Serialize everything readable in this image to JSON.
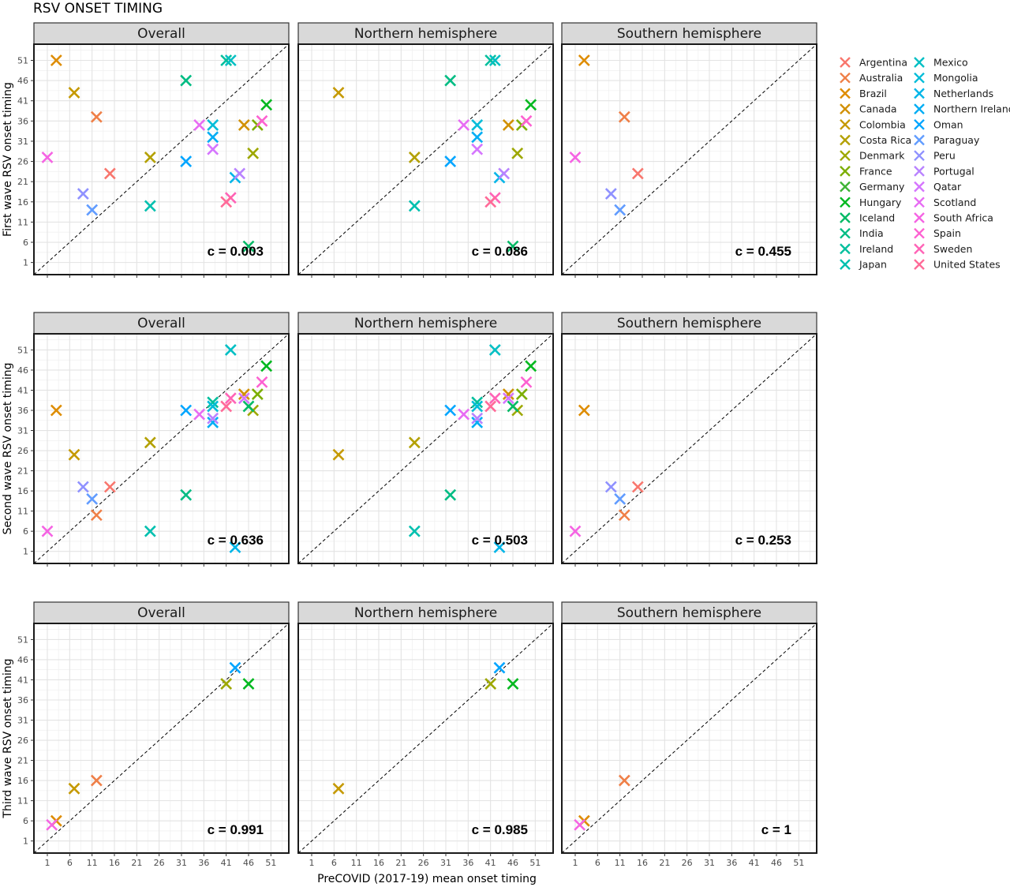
{
  "title": "RSV ONSET TIMING",
  "xlabel": "PreCOVID (2017-19) mean onset timing",
  "ylabels": [
    "First wave RSV onset timing",
    "Second wave RSV onset timing",
    "Third wave RSV onset timing"
  ],
  "panel_titles": [
    "Overall",
    "Northern hemisphere",
    "Southern hemisphere"
  ],
  "ticks": [
    "1",
    "6",
    "11",
    "16",
    "21",
    "26",
    "31",
    "36",
    "41",
    "46",
    "51"
  ],
  "countries": [
    {
      "name": "Argentina",
      "color": "#F8766D"
    },
    {
      "name": "Australia",
      "color": "#EF7F47"
    },
    {
      "name": "Brazil",
      "color": "#DE8C00"
    },
    {
      "name": "Canada",
      "color": "#D19000"
    },
    {
      "name": "Colombia",
      "color": "#C59900"
    },
    {
      "name": "Costa Rica",
      "color": "#B3A000"
    },
    {
      "name": "Denmark",
      "color": "#9DA700"
    },
    {
      "name": "France",
      "color": "#7CAE00"
    },
    {
      "name": "Germany",
      "color": "#3EB335"
    },
    {
      "name": "Hungary",
      "color": "#00B81F"
    },
    {
      "name": "Iceland",
      "color": "#00BA65"
    },
    {
      "name": "India",
      "color": "#00BC83"
    },
    {
      "name": "Ireland",
      "color": "#00BF9D"
    },
    {
      "name": "Japan",
      "color": "#00C0AF"
    },
    {
      "name": "Mexico",
      "color": "#00BFC4"
    },
    {
      "name": "Mongolia",
      "color": "#00BCD8"
    },
    {
      "name": "Netherlands",
      "color": "#00B5E8"
    },
    {
      "name": "Northern Ireland",
      "color": "#00ADF4"
    },
    {
      "name": "Oman",
      "color": "#00A5FF"
    },
    {
      "name": "Paraguay",
      "color": "#619CFF"
    },
    {
      "name": "Peru",
      "color": "#8F91FF"
    },
    {
      "name": "Portugal",
      "color": "#B983FF"
    },
    {
      "name": "Qatar",
      "color": "#D575FE"
    },
    {
      "name": "Scotland",
      "color": "#E76BF3"
    },
    {
      "name": "South Africa",
      "color": "#F564E3"
    },
    {
      "name": "Spain",
      "color": "#FD61D1"
    },
    {
      "name": "Sweden",
      "color": "#FF63B6"
    },
    {
      "name": "United States",
      "color": "#FF6A98"
    }
  ],
  "chart_data": {
    "type": "scatter",
    "xlim": [
      -2,
      55
    ],
    "ylim": [
      -2,
      55
    ],
    "reference_line": "y = x",
    "legend_position": "right",
    "rows": [
      {
        "ylabel": "First wave RSV onset timing",
        "panels": [
          {
            "title": "Overall",
            "c": "c = 0.003",
            "points": [
              {
                "country": "Argentina",
                "x": 15,
                "y": 23
              },
              {
                "country": "Australia",
                "x": 12,
                "y": 37
              },
              {
                "country": "Brazil",
                "x": 3,
                "y": 51
              },
              {
                "country": "Canada",
                "x": 45,
                "y": 35
              },
              {
                "country": "Colombia",
                "x": 7,
                "y": 43
              },
              {
                "country": "Costa Rica",
                "x": 24,
                "y": 27
              },
              {
                "country": "Denmark",
                "x": 47,
                "y": 28
              },
              {
                "country": "France",
                "x": 48,
                "y": 35
              },
              {
                "country": "Hungary",
                "x": 50,
                "y": 40
              },
              {
                "country": "Iceland",
                "x": 46,
                "y": 5
              },
              {
                "country": "India",
                "x": 32,
                "y": 46
              },
              {
                "country": "Ireland",
                "x": 41,
                "y": 51
              },
              {
                "country": "Japan",
                "x": 24,
                "y": 15
              },
              {
                "country": "Mexico",
                "x": 42,
                "y": 51
              },
              {
                "country": "Mongolia",
                "x": 38,
                "y": 35
              },
              {
                "country": "Netherlands",
                "x": 43,
                "y": 22
              },
              {
                "country": "Northern Ireland",
                "x": 38,
                "y": 32
              },
              {
                "country": "Oman",
                "x": 32,
                "y": 26
              },
              {
                "country": "Paraguay",
                "x": 11,
                "y": 14
              },
              {
                "country": "Peru",
                "x": 9,
                "y": 18
              },
              {
                "country": "Portugal",
                "x": 44,
                "y": 23
              },
              {
                "country": "Qatar",
                "x": 38,
                "y": 29
              },
              {
                "country": "Scotland",
                "x": 35,
                "y": 35
              },
              {
                "country": "South Africa",
                "x": 1,
                "y": 27
              },
              {
                "country": "Spain",
                "x": 49,
                "y": 36
              },
              {
                "country": "Sweden",
                "x": 42,
                "y": 17
              },
              {
                "country": "United States",
                "x": 41,
                "y": 16
              }
            ]
          },
          {
            "title": "Northern hemisphere",
            "c": "c = 0.086",
            "points": [
              {
                "country": "Canada",
                "x": 45,
                "y": 35
              },
              {
                "country": "Colombia",
                "x": 7,
                "y": 43
              },
              {
                "country": "Costa Rica",
                "x": 24,
                "y": 27
              },
              {
                "country": "Denmark",
                "x": 47,
                "y": 28
              },
              {
                "country": "France",
                "x": 48,
                "y": 35
              },
              {
                "country": "Hungary",
                "x": 50,
                "y": 40
              },
              {
                "country": "Iceland",
                "x": 46,
                "y": 5
              },
              {
                "country": "India",
                "x": 32,
                "y": 46
              },
              {
                "country": "Ireland",
                "x": 41,
                "y": 51
              },
              {
                "country": "Japan",
                "x": 24,
                "y": 15
              },
              {
                "country": "Mexico",
                "x": 42,
                "y": 51
              },
              {
                "country": "Mongolia",
                "x": 38,
                "y": 35
              },
              {
                "country": "Netherlands",
                "x": 43,
                "y": 22
              },
              {
                "country": "Northern Ireland",
                "x": 38,
                "y": 32
              },
              {
                "country": "Oman",
                "x": 32,
                "y": 26
              },
              {
                "country": "Portugal",
                "x": 44,
                "y": 23
              },
              {
                "country": "Qatar",
                "x": 38,
                "y": 29
              },
              {
                "country": "Scotland",
                "x": 35,
                "y": 35
              },
              {
                "country": "Spain",
                "x": 49,
                "y": 36
              },
              {
                "country": "Sweden",
                "x": 42,
                "y": 17
              },
              {
                "country": "United States",
                "x": 41,
                "y": 16
              }
            ]
          },
          {
            "title": "Southern hemisphere",
            "c": "c = 0.455",
            "points": [
              {
                "country": "Argentina",
                "x": 15,
                "y": 23
              },
              {
                "country": "Australia",
                "x": 12,
                "y": 37
              },
              {
                "country": "Brazil",
                "x": 3,
                "y": 51
              },
              {
                "country": "Paraguay",
                "x": 11,
                "y": 14
              },
              {
                "country": "Peru",
                "x": 9,
                "y": 18
              },
              {
                "country": "South Africa",
                "x": 1,
                "y": 27
              }
            ]
          }
        ]
      },
      {
        "ylabel": "Second wave RSV onset timing",
        "panels": [
          {
            "title": "Overall",
            "c": "c = 0.636",
            "points": [
              {
                "country": "Argentina",
                "x": 15,
                "y": 17
              },
              {
                "country": "Australia",
                "x": 12,
                "y": 10
              },
              {
                "country": "Brazil",
                "x": 3,
                "y": 36
              },
              {
                "country": "Canada",
                "x": 45,
                "y": 40
              },
              {
                "country": "Colombia",
                "x": 7,
                "y": 25
              },
              {
                "country": "Costa Rica",
                "x": 24,
                "y": 28
              },
              {
                "country": "Denmark",
                "x": 47,
                "y": 36
              },
              {
                "country": "France",
                "x": 48,
                "y": 40
              },
              {
                "country": "Hungary",
                "x": 50,
                "y": 47
              },
              {
                "country": "Iceland",
                "x": 46,
                "y": 37
              },
              {
                "country": "India",
                "x": 32,
                "y": 15
              },
              {
                "country": "Ireland",
                "x": 38,
                "y": 38
              },
              {
                "country": "Japan",
                "x": 24,
                "y": 6
              },
              {
                "country": "Mexico",
                "x": 42,
                "y": 51
              },
              {
                "country": "Mongolia",
                "x": 38,
                "y": 37
              },
              {
                "country": "Netherlands",
                "x": 43,
                "y": 2
              },
              {
                "country": "Northern Ireland",
                "x": 38,
                "y": 33
              },
              {
                "country": "Oman",
                "x": 32,
                "y": 36
              },
              {
                "country": "Paraguay",
                "x": 11,
                "y": 14
              },
              {
                "country": "Peru",
                "x": 9,
                "y": 17
              },
              {
                "country": "Portugal",
                "x": 38,
                "y": 34
              },
              {
                "country": "Qatar",
                "x": 45,
                "y": 39
              },
              {
                "country": "Scotland",
                "x": 35,
                "y": 35
              },
              {
                "country": "South Africa",
                "x": 1,
                "y": 6
              },
              {
                "country": "Spain",
                "x": 49,
                "y": 43
              },
              {
                "country": "Sweden",
                "x": 42,
                "y": 39
              },
              {
                "country": "United States",
                "x": 41,
                "y": 37
              }
            ]
          },
          {
            "title": "Northern hemisphere",
            "c": "c = 0.503",
            "points": [
              {
                "country": "Canada",
                "x": 45,
                "y": 40
              },
              {
                "country": "Colombia",
                "x": 7,
                "y": 25
              },
              {
                "country": "Costa Rica",
                "x": 24,
                "y": 28
              },
              {
                "country": "Denmark",
                "x": 47,
                "y": 36
              },
              {
                "country": "France",
                "x": 48,
                "y": 40
              },
              {
                "country": "Hungary",
                "x": 50,
                "y": 47
              },
              {
                "country": "Iceland",
                "x": 46,
                "y": 37
              },
              {
                "country": "India",
                "x": 32,
                "y": 15
              },
              {
                "country": "Ireland",
                "x": 38,
                "y": 38
              },
              {
                "country": "Japan",
                "x": 24,
                "y": 6
              },
              {
                "country": "Mexico",
                "x": 42,
                "y": 51
              },
              {
                "country": "Mongolia",
                "x": 38,
                "y": 37
              },
              {
                "country": "Netherlands",
                "x": 43,
                "y": 2
              },
              {
                "country": "Northern Ireland",
                "x": 38,
                "y": 33
              },
              {
                "country": "Oman",
                "x": 32,
                "y": 36
              },
              {
                "country": "Portugal",
                "x": 38,
                "y": 34
              },
              {
                "country": "Qatar",
                "x": 45,
                "y": 39
              },
              {
                "country": "Scotland",
                "x": 35,
                "y": 35
              },
              {
                "country": "Spain",
                "x": 49,
                "y": 43
              },
              {
                "country": "Sweden",
                "x": 42,
                "y": 39
              },
              {
                "country": "United States",
                "x": 41,
                "y": 37
              }
            ]
          },
          {
            "title": "Southern hemisphere",
            "c": "c = 0.253",
            "points": [
              {
                "country": "Argentina",
                "x": 15,
                "y": 17
              },
              {
                "country": "Australia",
                "x": 12,
                "y": 10
              },
              {
                "country": "Brazil",
                "x": 3,
                "y": 36
              },
              {
                "country": "Paraguay",
                "x": 11,
                "y": 14
              },
              {
                "country": "Peru",
                "x": 9,
                "y": 17
              },
              {
                "country": "South Africa",
                "x": 1,
                "y": 6
              }
            ]
          }
        ]
      },
      {
        "ylabel": "Third wave RSV onset timing",
        "panels": [
          {
            "title": "Overall",
            "c": "c = 0.991",
            "points": [
              {
                "country": "Australia",
                "x": 12,
                "y": 16
              },
              {
                "country": "Brazil",
                "x": 3,
                "y": 6
              },
              {
                "country": "Colombia",
                "x": 7,
                "y": 14
              },
              {
                "country": "Denmark",
                "x": 41,
                "y": 40
              },
              {
                "country": "Hungary",
                "x": 46,
                "y": 40
              },
              {
                "country": "Oman",
                "x": 43,
                "y": 44
              },
              {
                "country": "South Africa",
                "x": 2,
                "y": 5
              }
            ]
          },
          {
            "title": "Northern hemisphere",
            "c": "c = 0.985",
            "points": [
              {
                "country": "Colombia",
                "x": 7,
                "y": 14
              },
              {
                "country": "Denmark",
                "x": 41,
                "y": 40
              },
              {
                "country": "Hungary",
                "x": 46,
                "y": 40
              },
              {
                "country": "Oman",
                "x": 43,
                "y": 44
              }
            ]
          },
          {
            "title": "Southern hemisphere",
            "c": "c = 1",
            "points": [
              {
                "country": "Australia",
                "x": 12,
                "y": 16
              },
              {
                "country": "Brazil",
                "x": 3,
                "y": 6
              },
              {
                "country": "South Africa",
                "x": 2,
                "y": 5
              }
            ]
          }
        ]
      }
    ]
  }
}
